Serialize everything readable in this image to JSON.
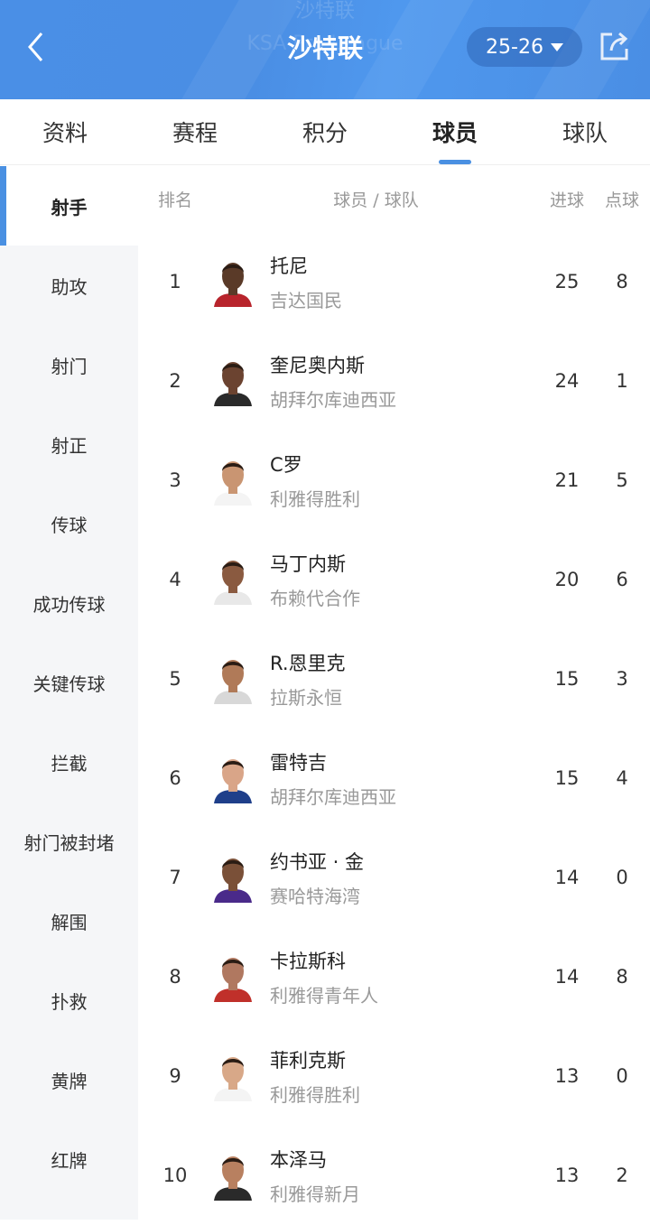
{
  "header": {
    "title": "沙特联",
    "watermark_title": "沙特联",
    "watermark_subtitle": "KSA Pro League",
    "season": "25-26",
    "accent": "#4a90e2"
  },
  "tabs": [
    {
      "label": "资料"
    },
    {
      "label": "赛程"
    },
    {
      "label": "积分"
    },
    {
      "label": "球员",
      "active": true
    },
    {
      "label": "球队"
    }
  ],
  "sidebar": {
    "items": [
      {
        "label": "射手",
        "active": true
      },
      {
        "label": "助攻"
      },
      {
        "label": "射门"
      },
      {
        "label": "射正"
      },
      {
        "label": "传球"
      },
      {
        "label": "成功传球"
      },
      {
        "label": "关键传球"
      },
      {
        "label": "拦截"
      },
      {
        "label": "射门被封堵"
      },
      {
        "label": "解围"
      },
      {
        "label": "扑救"
      },
      {
        "label": "黄牌"
      },
      {
        "label": "红牌"
      }
    ]
  },
  "table": {
    "headers": {
      "rank": "排名",
      "player": "球员 / 球队",
      "goals": "进球",
      "penalties": "点球"
    },
    "rows": [
      {
        "rank": "1",
        "name": "托尼",
        "team": "吉达国民",
        "goals": "25",
        "penalties": "8",
        "kit": "#b8242c",
        "skin": "#5a3a28"
      },
      {
        "rank": "2",
        "name": "奎尼奥内斯",
        "team": "胡拜尔库迪西亚",
        "goals": "24",
        "penalties": "1",
        "kit": "#2a2a2a",
        "skin": "#6b4330"
      },
      {
        "rank": "3",
        "name": "C罗",
        "team": "利雅得胜利",
        "goals": "21",
        "penalties": "5",
        "kit": "#f4f4f4",
        "skin": "#c99572"
      },
      {
        "rank": "4",
        "name": "马丁内斯",
        "team": "布赖代合作",
        "goals": "20",
        "penalties": "6",
        "kit": "#e8e8e8",
        "skin": "#8a5a40"
      },
      {
        "rank": "5",
        "name": "R.恩里克",
        "team": "拉斯永恒",
        "goals": "15",
        "penalties": "3",
        "kit": "#d8d8d8",
        "skin": "#b07a58"
      },
      {
        "rank": "6",
        "name": "雷特吉",
        "team": "胡拜尔库迪西亚",
        "goals": "15",
        "penalties": "4",
        "kit": "#1f3f8a",
        "skin": "#d9a588"
      },
      {
        "rank": "7",
        "name": "约书亚 · 金",
        "team": "赛哈特海湾",
        "goals": "14",
        "penalties": "0",
        "kit": "#4a2a8a",
        "skin": "#7a5038"
      },
      {
        "rank": "8",
        "name": "卡拉斯科",
        "team": "利雅得青年人",
        "goals": "14",
        "penalties": "8",
        "kit": "#c0302a",
        "skin": "#b07860"
      },
      {
        "rank": "9",
        "name": "菲利克斯",
        "team": "利雅得胜利",
        "goals": "13",
        "penalties": "0",
        "kit": "#f4f4f4",
        "skin": "#d8a888"
      },
      {
        "rank": "10",
        "name": "本泽马",
        "team": "利雅得新月",
        "goals": "13",
        "penalties": "2",
        "kit": "#2a2a2a",
        "skin": "#b88060"
      }
    ]
  }
}
